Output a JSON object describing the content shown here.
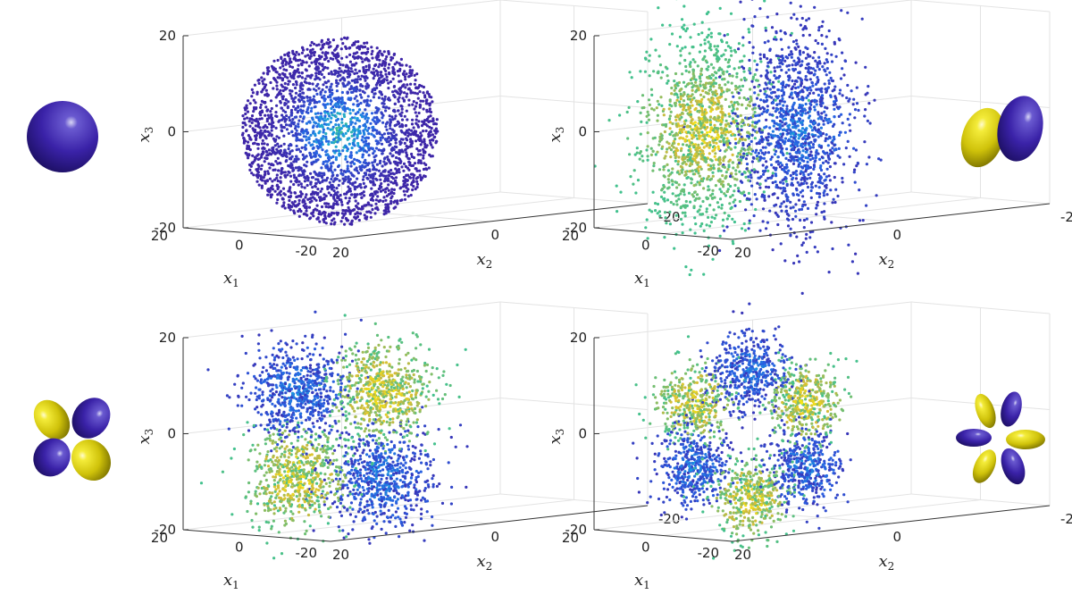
{
  "chart_data": [
    {
      "type": "scatter",
      "panel": "top-left",
      "xlabel": "x_1",
      "ylabel": "x_2",
      "zlabel": "x_3",
      "xticks": [
        "20",
        "0",
        "-20"
      ],
      "yticks": [
        "20",
        "0",
        "-20"
      ],
      "zticks": [
        "20",
        "0",
        "-20"
      ],
      "xlim": [
        -20,
        20
      ],
      "ylim": [
        -20,
        20
      ],
      "zlim": [
        -20,
        20
      ],
      "grid": true,
      "colormap": "parula",
      "shape": "sphere",
      "lobes": 1,
      "radius": 16,
      "points_estimate": 3000,
      "inset_icon": "s-orbital-sphere-icon",
      "colors": {
        "positive": "#3a1fa8",
        "negative": "#f5e50f"
      }
    },
    {
      "type": "scatter",
      "panel": "top-right",
      "xlabel": "x_1",
      "ylabel": "x_2",
      "zlabel": "x_3",
      "xticks": [
        "20",
        "0",
        "-20"
      ],
      "yticks": [
        "20",
        "0",
        "-20"
      ],
      "zticks": [
        "20",
        "0",
        "-20"
      ],
      "xlim": [
        -20,
        20
      ],
      "ylim": [
        -20,
        20
      ],
      "zlim": [
        -20,
        20
      ],
      "grid": true,
      "colormap": "parula",
      "shape": "two lobes",
      "lobes": 2,
      "radius": 17,
      "points_estimate": 3000,
      "inset_icon": "p-orbital-two-lobe-icon",
      "colors": {
        "positive": "#3a1fa8",
        "negative": "#f5e50f"
      }
    },
    {
      "type": "scatter",
      "panel": "bottom-left",
      "xlabel": "x_1",
      "ylabel": "x_2",
      "zlabel": "x_3",
      "xticks": [
        "20",
        "0",
        "-20"
      ],
      "yticks": [
        "20",
        "0",
        "-20"
      ],
      "zticks": [
        "20",
        "0",
        "-20"
      ],
      "xlim": [
        -20,
        20
      ],
      "ylim": [
        -20,
        20
      ],
      "zlim": [
        -20,
        20
      ],
      "grid": true,
      "colormap": "parula",
      "shape": "four lobes",
      "lobes": 4,
      "radius": 17,
      "points_estimate": 3000,
      "inset_icon": "d-orbital-four-lobe-icon",
      "colors": {
        "positive": "#3a1fa8",
        "negative": "#f5e50f"
      }
    },
    {
      "type": "scatter",
      "panel": "bottom-right",
      "xlabel": "x_1",
      "ylabel": "x_2",
      "zlabel": "x_3",
      "xticks": [
        "20",
        "0",
        "-20"
      ],
      "yticks": [
        "20",
        "0",
        "-20"
      ],
      "zticks": [
        "20",
        "0",
        "-20"
      ],
      "xlim": [
        -20,
        20
      ],
      "ylim": [
        -20,
        20
      ],
      "zlim": [
        -20,
        20
      ],
      "grid": true,
      "colormap": "parula",
      "shape": "six lobes",
      "lobes": 6,
      "radius": 17,
      "points_estimate": 3000,
      "inset_icon": "f-orbital-six-lobe-icon",
      "colors": {
        "positive": "#3a1fa8",
        "negative": "#f5e50f"
      }
    }
  ]
}
